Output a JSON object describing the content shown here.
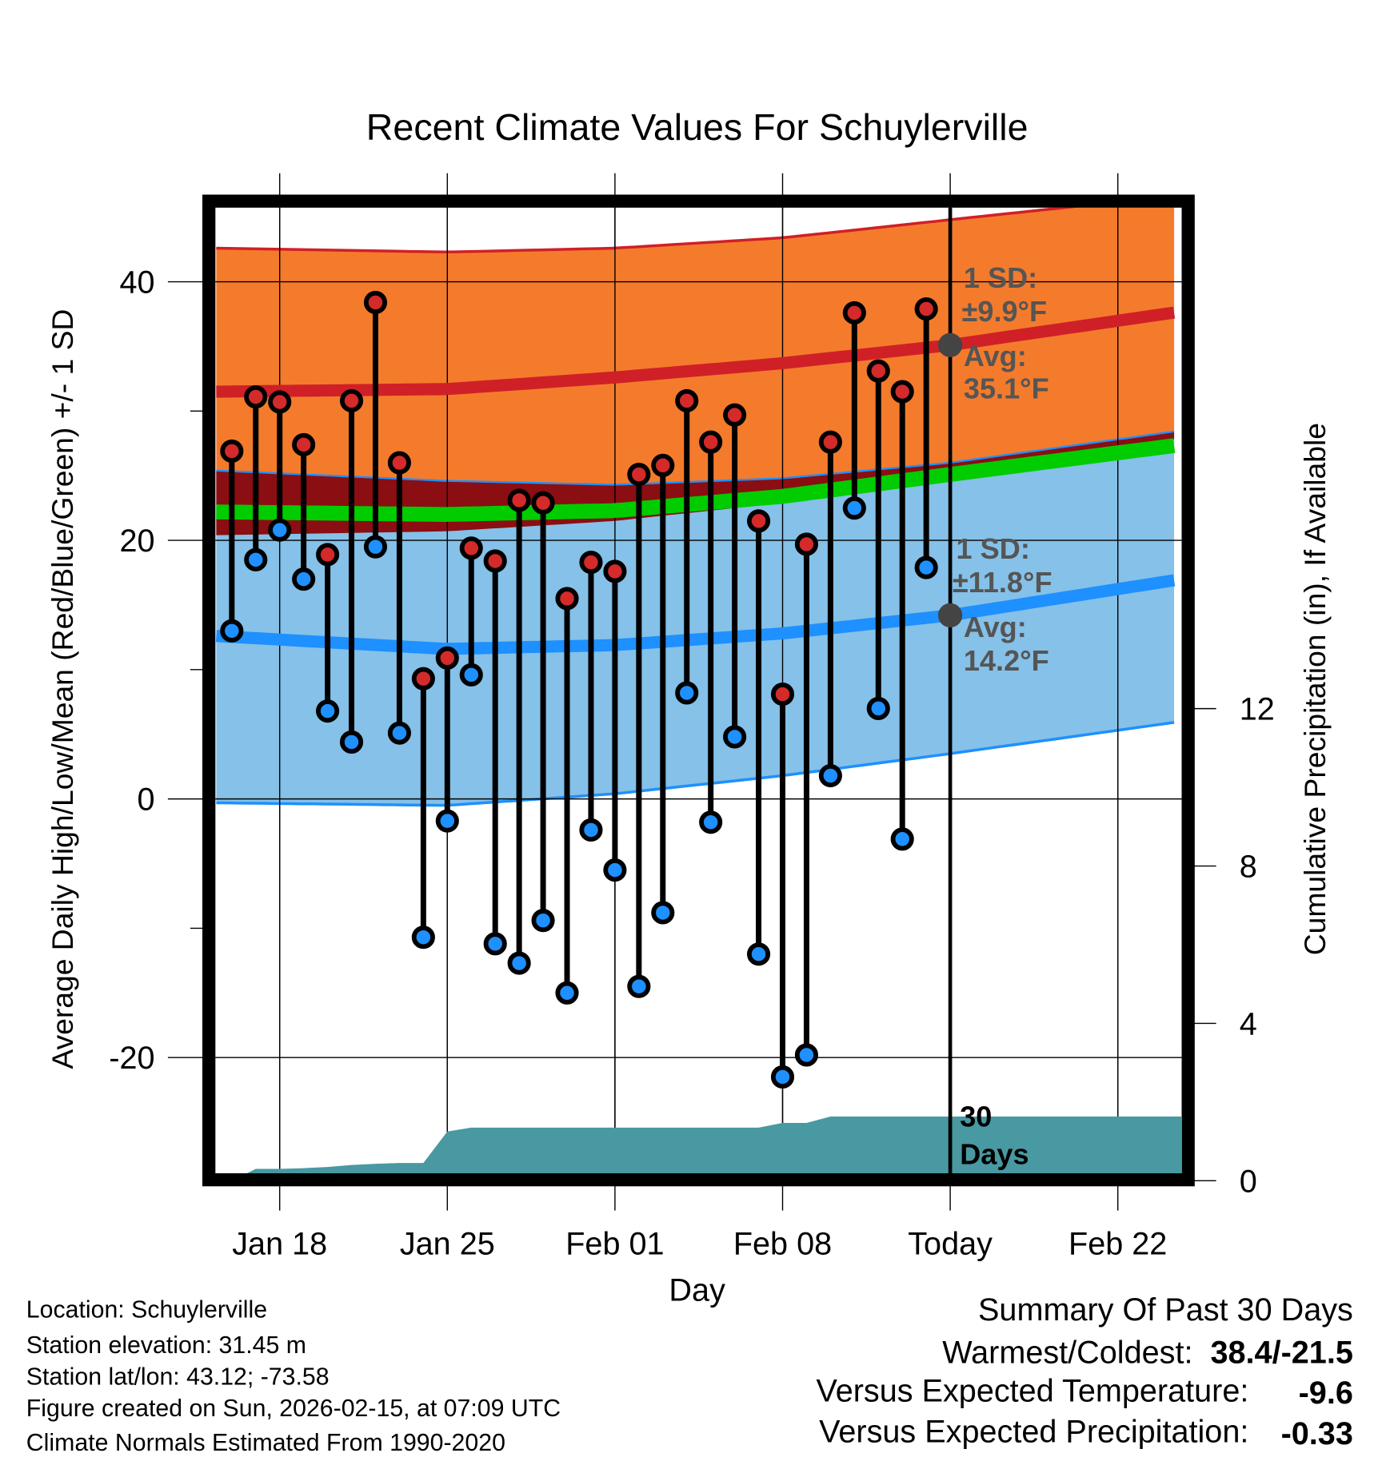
{
  "chart_data": {
    "type": "line",
    "title": "Recent Climate Values For Schuylerville",
    "xlabel": "Day",
    "ylabel": "Average Daily High/Low/Mean (Red/Blue/Green) +/- 1 SD",
    "y2label": "Cumulative Precipitation (in), If Available",
    "x_origin_label": "Jan 18",
    "x_units": "days from Jan 18",
    "xlim": [
      -2.65,
      37.65
    ],
    "ylim": [
      -29.5,
      46.3
    ],
    "y2lim": [
      0,
      18.7
    ],
    "x_ticks": [
      {
        "day": 0,
        "label": "Jan 18"
      },
      {
        "day": 7,
        "label": "Jan 25"
      },
      {
        "day": 14,
        "label": "Feb 01"
      },
      {
        "day": 21,
        "label": "Feb 08"
      },
      {
        "day": 28,
        "label": "Today"
      },
      {
        "day": 35,
        "label": "Feb 22"
      }
    ],
    "y_ticks": [
      {
        "v": 40,
        "label": "40"
      },
      {
        "v": 20,
        "label": "20"
      },
      {
        "v": 0,
        "label": "0"
      },
      {
        "v": -20,
        "label": "-20"
      }
    ],
    "y_minor_ticks": [
      30,
      10,
      -10
    ],
    "y2_ticks": [
      {
        "v": 0,
        "label": "0"
      },
      {
        "v": 4,
        "label": "4"
      },
      {
        "v": 8,
        "label": "8"
      },
      {
        "v": 12,
        "label": "12"
      }
    ],
    "grid": true,
    "observed": {
      "days": [
        "Jan 16",
        "Jan 17",
        "Jan 18",
        "Jan 19",
        "Jan 20",
        "Jan 21",
        "Jan 22",
        "Jan 23",
        "Jan 24",
        "Jan 25",
        "Jan 26",
        "Jan 27",
        "Jan 28",
        "Jan 29",
        "Jan 30",
        "Jan 31",
        "Feb 01",
        "Feb 02",
        "Feb 03",
        "Feb 04",
        "Feb 05",
        "Feb 06",
        "Feb 07",
        "Feb 08",
        "Feb 09",
        "Feb 10",
        "Feb 11",
        "Feb 12",
        "Feb 13",
        "Feb 14"
      ],
      "first_day_offset": -2,
      "high": [
        26.9,
        31.1,
        30.7,
        27.4,
        18.9,
        30.8,
        38.4,
        26.0,
        9.3,
        10.9,
        19.4,
        18.4,
        23.1,
        22.9,
        15.5,
        18.3,
        17.6,
        25.1,
        25.8,
        30.8,
        27.6,
        29.7,
        21.5,
        8.1,
        19.7,
        27.6,
        37.6,
        33.1,
        31.5,
        37.9
      ],
      "low": [
        13.0,
        18.5,
        20.8,
        17.0,
        6.8,
        4.4,
        19.5,
        5.1,
        -10.7,
        -1.7,
        9.6,
        -11.2,
        -12.7,
        -9.4,
        -15.0,
        -2.4,
        -5.5,
        -14.5,
        -8.8,
        8.2,
        -1.8,
        4.8,
        -12.0,
        -21.5,
        -19.8,
        1.8,
        22.5,
        7.0,
        -3.1,
        17.9
      ],
      "cumulative_precip": [
        0,
        0.3,
        0.3,
        0.32,
        0.35,
        0.4,
        0.43,
        0.45,
        0.45,
        1.25,
        1.35,
        1.35,
        1.35,
        1.35,
        1.35,
        1.35,
        1.35,
        1.35,
        1.35,
        1.35,
        1.35,
        1.35,
        1.35,
        1.47,
        1.47,
        1.63,
        1.63,
        1.63,
        1.63,
        1.63
      ]
    },
    "normals": {
      "day_offsets": [
        -2.65,
        7,
        14,
        21,
        28,
        37.65
      ],
      "high_upper": [
        42.6,
        42.3,
        42.6,
        43.4,
        44.8,
        46.7
      ],
      "high_mean": [
        31.5,
        31.7,
        32.6,
        33.7,
        35.1,
        37.7
      ],
      "high_lower": [
        25.4,
        24.5,
        24.3,
        24.8,
        25.9,
        28.4
      ],
      "low_upper": [
        25.4,
        24.6,
        24.3,
        24.8,
        26.0,
        28.5
      ],
      "overlap_lower": [
        20.4,
        20.7,
        21.5,
        22.9,
        25.1,
        27.9
      ],
      "mean": [
        22.2,
        22.0,
        22.3,
        23.4,
        25.1,
        27.4
      ],
      "low_mean": [
        12.6,
        11.6,
        11.9,
        12.8,
        14.2,
        17.0
      ],
      "low_lower": [
        -0.3,
        -0.5,
        0.4,
        1.8,
        3.5,
        6.0
      ]
    },
    "today_day": 28,
    "today_high_avg": 35.1,
    "today_low_avg": 14.2,
    "annotations": {
      "high_sd_label": "1 SD:",
      "high_sd_value": "±9.9°F",
      "high_avg_label": "Avg:",
      "high_avg_value": "35.1°F",
      "low_sd_label": "1 SD:",
      "low_sd_value": "±11.8°F",
      "low_avg_label": "Avg:",
      "low_avg_value": "14.2°F",
      "days_count": "30",
      "days_word": "Days"
    },
    "colors": {
      "high_band": "#f47b2c",
      "overlap": "#8b0e12",
      "high_line": "#d02027",
      "low_band": "#85c1e8",
      "low_line": "#1e90ff",
      "mean_line": "#00cc00",
      "precip": "#4899a2",
      "high_dot": "#d42a2a",
      "low_dot": "#1e90ff",
      "annotation": "#555555"
    }
  },
  "info": {
    "location": "Location: Schuylerville",
    "elevation": "Station elevation: 31.45 m",
    "latlon": "Station lat/lon: 43.12; -73.58",
    "created": "Figure created on Sun, 2026-02-15, at 07:09 UTC",
    "normals": "Climate Normals Estimated From 1990-2020"
  },
  "summary": {
    "title": "Summary Of Past 30 Days",
    "warm_cold_label": "Warmest/Coldest:",
    "warm_cold_value": "38.4/-21.5",
    "temp_label": "Versus Expected Temperature:",
    "temp_value": "-9.6",
    "temp_color": "#1e90ff",
    "precip_label": "Versus Expected Precipitation:",
    "precip_value": "-0.33",
    "precip_color": "#a0522d"
  }
}
